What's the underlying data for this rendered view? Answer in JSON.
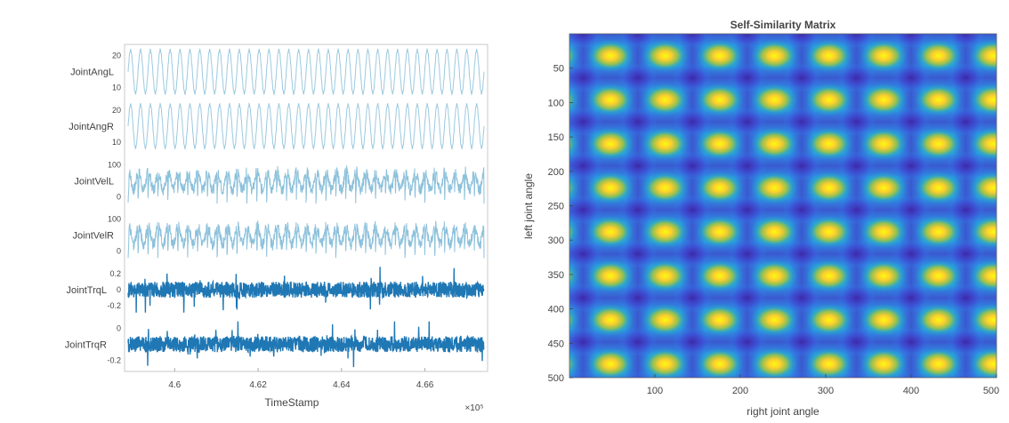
{
  "chart_data": [
    {
      "type": "line",
      "subplots": [
        {
          "ylabel": "JointAngL",
          "tick_labels": [
            "20",
            "10"
          ],
          "color": "#9cc9df"
        },
        {
          "ylabel": "JointAngR",
          "tick_labels": [
            "20",
            "10"
          ],
          "color": "#9cc9df"
        },
        {
          "ylabel": "JointVelL",
          "tick_labels": [
            "100",
            "0"
          ],
          "color": "#8cc1db"
        },
        {
          "ylabel": "JointVelR",
          "tick_labels": [
            "100",
            "0"
          ],
          "color": "#8cc1db"
        },
        {
          "ylabel": "JointTrqL",
          "tick_labels": [
            "0.2",
            "0",
            "-0.2"
          ],
          "color": "#1f77b4"
        },
        {
          "ylabel": "JointTrqR",
          "tick_labels": [
            "0",
            "-0.2"
          ],
          "color": "#1f77b4"
        }
      ],
      "xlabel": "TimeStamp",
      "x_tick_labels": [
        "4.6",
        "4.62",
        "4.64",
        "4.66"
      ],
      "x_ticks": [
        4.6,
        4.62,
        4.64,
        4.66
      ],
      "xlim": [
        4.588,
        4.675
      ],
      "x_exponent": "×10⁵",
      "cycles": 36
    },
    {
      "type": "heatmap",
      "title": "Self-Similarity Matrix",
      "xlabel": "right joint angle",
      "ylabel": "left joint angle",
      "xlim": [
        0,
        500
      ],
      "ylim": [
        0,
        500
      ],
      "x_tick_labels": [
        "100",
        "200",
        "300",
        "400",
        "500"
      ],
      "x_ticks": [
        100,
        200,
        300,
        400,
        500
      ],
      "y_tick_labels": [
        "50",
        "100",
        "150",
        "200",
        "250",
        "300",
        "350",
        "400",
        "450",
        "500"
      ],
      "y_ticks": [
        50,
        100,
        150,
        200,
        250,
        300,
        350,
        400,
        450,
        500
      ],
      "period": 64,
      "x_phase": 48,
      "y_phase": 32,
      "colormap": [
        "#3e26a8",
        "#2e87f7",
        "#26bdb2",
        "#a5c83a",
        "#fcce2e",
        "#f9fb0e"
      ]
    }
  ]
}
